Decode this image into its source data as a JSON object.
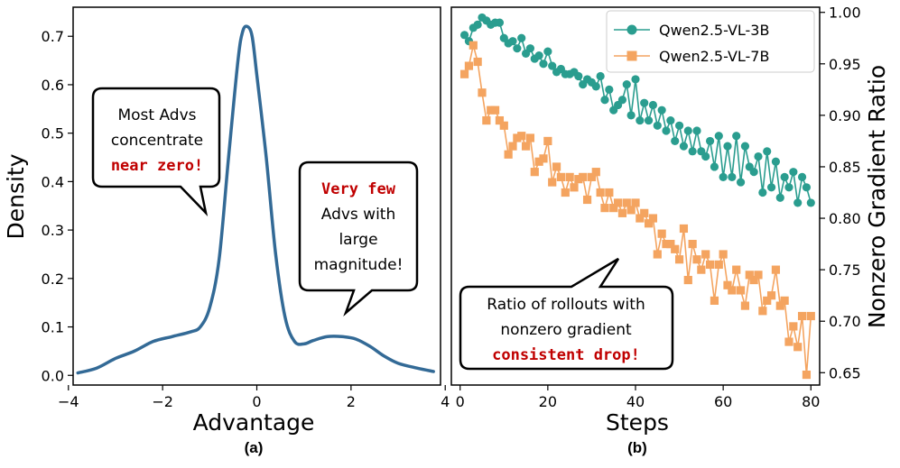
{
  "chart_data": [
    {
      "type": "line",
      "panel_label": "(a)",
      "xlabel": "Advantage",
      "ylabel": "Density",
      "xlim": [
        -3.9,
        3.9
      ],
      "ylim": [
        -0.02,
        0.76
      ],
      "xticks": [
        -4,
        -2,
        0,
        2,
        4
      ],
      "xtick_labels": [
        "−4",
        "−2",
        "0",
        "2",
        "4"
      ],
      "yticks": [
        0.0,
        0.1,
        0.2,
        0.3,
        0.4,
        0.5,
        0.6,
        0.7
      ],
      "ytick_labels": [
        "0.0",
        "0.1",
        "0.2",
        "0.3",
        "0.4",
        "0.5",
        "0.6",
        "0.7"
      ],
      "color": "#336a96",
      "series": [
        {
          "name": "density",
          "x": [
            -3.8,
            -3.4,
            -3.0,
            -2.6,
            -2.2,
            -1.8,
            -1.4,
            -1.2,
            -1.0,
            -0.8,
            -0.6,
            -0.4,
            -0.3,
            -0.2,
            -0.1,
            0.0,
            0.2,
            0.4,
            0.6,
            0.8,
            1.0,
            1.2,
            1.5,
            1.8,
            2.1,
            2.4,
            2.7,
            3.0,
            3.4,
            3.75
          ],
          "y": [
            0.005,
            0.015,
            0.035,
            0.05,
            0.07,
            0.08,
            0.09,
            0.1,
            0.14,
            0.24,
            0.45,
            0.65,
            0.71,
            0.72,
            0.7,
            0.62,
            0.45,
            0.25,
            0.12,
            0.07,
            0.065,
            0.072,
            0.08,
            0.08,
            0.075,
            0.06,
            0.04,
            0.025,
            0.015,
            0.008
          ]
        }
      ],
      "annotations": [
        {
          "lines": [
            "Most Advs",
            "concentrate"
          ],
          "highlight": "near zero!"
        },
        {
          "highlight": "Very few",
          "lines": [
            "Advs with",
            "large",
            "magnitude!"
          ]
        }
      ]
    },
    {
      "type": "line",
      "panel_label": "(b)",
      "xlabel": "Steps",
      "ylabel": "Nonzero Gradient Ratio",
      "xlim": [
        -2,
        82
      ],
      "ylim": [
        0.638,
        1.005
      ],
      "xticks": [
        0,
        20,
        40,
        60,
        80
      ],
      "xtick_labels": [
        "0",
        "20",
        "40",
        "60",
        "80"
      ],
      "yticks": [
        0.65,
        0.7,
        0.75,
        0.8,
        0.85,
        0.9,
        0.95,
        1.0
      ],
      "ytick_labels": [
        "0.65",
        "0.70",
        "0.75",
        "0.80",
        "0.85",
        "0.90",
        "0.95",
        "1.00"
      ],
      "legend_position": "top-right",
      "series": [
        {
          "name": "Qwen2.5-VL-3B",
          "color": "#2a9d8f",
          "marker": "circle",
          "x": [
            1,
            2,
            3,
            4,
            5,
            6,
            7,
            8,
            9,
            10,
            11,
            12,
            13,
            14,
            15,
            16,
            17,
            18,
            19,
            20,
            21,
            22,
            23,
            24,
            25,
            26,
            27,
            28,
            29,
            30,
            31,
            32,
            33,
            34,
            35,
            36,
            37,
            38,
            39,
            40,
            41,
            42,
            43,
            44,
            45,
            46,
            47,
            48,
            49,
            50,
            51,
            52,
            53,
            54,
            55,
            56,
            57,
            58,
            59,
            60,
            61,
            62,
            63,
            64,
            65,
            66,
            67,
            68,
            69,
            70,
            71,
            72,
            73,
            74,
            75,
            76,
            77,
            78,
            79,
            80
          ],
          "y": [
            0.978,
            0.972,
            0.985,
            0.988,
            0.995,
            0.992,
            0.988,
            0.99,
            0.99,
            0.975,
            0.97,
            0.972,
            0.965,
            0.975,
            0.96,
            0.965,
            0.955,
            0.958,
            0.95,
            0.962,
            0.948,
            0.942,
            0.945,
            0.94,
            0.94,
            0.942,
            0.938,
            0.93,
            0.935,
            0.932,
            0.928,
            0.938,
            0.915,
            0.925,
            0.905,
            0.91,
            0.915,
            0.93,
            0.9,
            0.935,
            0.895,
            0.912,
            0.895,
            0.91,
            0.89,
            0.905,
            0.885,
            0.895,
            0.875,
            0.89,
            0.87,
            0.885,
            0.865,
            0.885,
            0.865,
            0.86,
            0.875,
            0.85,
            0.88,
            0.84,
            0.87,
            0.84,
            0.88,
            0.835,
            0.87,
            0.85,
            0.845,
            0.86,
            0.825,
            0.865,
            0.83,
            0.855,
            0.82,
            0.84,
            0.83,
            0.845,
            0.815,
            0.84,
            0.83,
            0.815
          ]
        },
        {
          "name": "Qwen2.5-VL-7B",
          "color": "#f4a460",
          "marker": "square",
          "x": [
            1,
            2,
            3,
            4,
            5,
            6,
            7,
            8,
            9,
            10,
            11,
            12,
            13,
            14,
            15,
            16,
            17,
            18,
            19,
            20,
            21,
            22,
            23,
            24,
            25,
            26,
            27,
            28,
            29,
            30,
            31,
            32,
            33,
            34,
            35,
            36,
            37,
            38,
            39,
            40,
            41,
            42,
            43,
            44,
            45,
            46,
            47,
            48,
            49,
            50,
            51,
            52,
            53,
            54,
            55,
            56,
            57,
            58,
            59,
            60,
            61,
            62,
            63,
            64,
            65,
            66,
            67,
            68,
            69,
            70,
            71,
            72,
            73,
            74,
            75,
            76,
            77,
            78,
            79,
            80
          ],
          "y": [
            0.94,
            0.948,
            0.968,
            0.952,
            0.922,
            0.895,
            0.905,
            0.905,
            0.895,
            0.89,
            0.862,
            0.87,
            0.878,
            0.88,
            0.87,
            0.878,
            0.845,
            0.855,
            0.858,
            0.875,
            0.835,
            0.85,
            0.84,
            0.825,
            0.84,
            0.83,
            0.838,
            0.84,
            0.818,
            0.84,
            0.845,
            0.825,
            0.81,
            0.825,
            0.81,
            0.815,
            0.805,
            0.815,
            0.808,
            0.815,
            0.8,
            0.805,
            0.795,
            0.8,
            0.765,
            0.785,
            0.775,
            0.775,
            0.77,
            0.76,
            0.79,
            0.74,
            0.775,
            0.76,
            0.75,
            0.765,
            0.755,
            0.72,
            0.755,
            0.765,
            0.735,
            0.73,
            0.75,
            0.73,
            0.715,
            0.745,
            0.74,
            0.745,
            0.71,
            0.72,
            0.725,
            0.75,
            0.715,
            0.72,
            0.68,
            0.695,
            0.675,
            0.705,
            0.648,
            0.705
          ]
        }
      ],
      "annotations": [
        {
          "lines": [
            "Ratio of rollouts with",
            "nonzero gradient"
          ],
          "highlight": "consistent drop!"
        }
      ]
    }
  ]
}
